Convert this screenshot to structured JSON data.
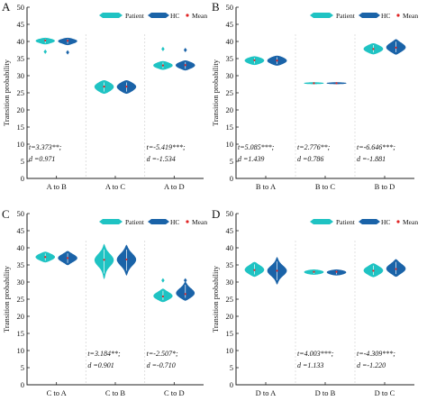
{
  "legend": {
    "patient": "Patient",
    "hc": "HC",
    "mean": "Mean"
  },
  "colors": {
    "patient": "#1fc3c3",
    "hc": "#1a63a8",
    "mean": "#e02424",
    "axis": "#222222",
    "divider": "#d9d9d9"
  },
  "chart_data": [
    {
      "panel": "A",
      "type": "violin",
      "ylabel": "Transition probability",
      "ylim": [
        0,
        50
      ],
      "yticks": [
        0,
        5,
        10,
        15,
        20,
        25,
        30,
        35,
        40,
        45,
        50
      ],
      "categories": [
        "A to B",
        "A to C",
        "A to D"
      ],
      "series": [
        {
          "name": "Patient",
          "median": [
            40.3,
            26.8,
            33.0
          ],
          "spread": [
            0.9,
            1.8,
            1.2
          ],
          "range": [
            [
              39.2,
              41.0
            ],
            [
              24.8,
              28.6
            ],
            [
              31.8,
              34.2
            ]
          ],
          "outliers": [
            [
              37.0
            ],
            [],
            [
              37.8
            ]
          ]
        },
        {
          "name": "HC",
          "median": [
            40.2,
            26.8,
            33.1
          ],
          "spread": [
            0.9,
            1.7,
            1.2
          ],
          "range": [
            [
              39.0,
              41.0
            ],
            [
              24.8,
              28.6
            ],
            [
              31.6,
              34.4
            ]
          ],
          "outliers": [
            [
              36.8
            ],
            [],
            [
              37.5
            ]
          ]
        }
      ],
      "stats": [
        {
          "t": "t=3.373**;",
          "d": "d =0.971"
        },
        null,
        {
          "t": "t=-5.419***;",
          "d": "d =-1.534"
        }
      ]
    },
    {
      "panel": "B",
      "type": "violin",
      "ylabel": "Transition probability",
      "ylim": [
        0,
        50
      ],
      "yticks": [
        0,
        5,
        10,
        15,
        20,
        25,
        30,
        35,
        40,
        45,
        50
      ],
      "categories": [
        "B to A",
        "B to C",
        "B to D"
      ],
      "series": [
        {
          "name": "Patient",
          "median": [
            34.5,
            27.8,
            37.8
          ],
          "spread": [
            1.4,
            0.9,
            1.4
          ],
          "range": [
            [
              33.2,
              35.6
            ],
            [
              27.6,
              28.0
            ],
            [
              36.3,
              39.4
            ]
          ],
          "outliers": [
            [],
            [],
            []
          ]
        },
        {
          "name": "HC",
          "median": [
            34.4,
            27.8,
            38.2
          ],
          "spread": [
            1.4,
            0.9,
            1.4
          ],
          "range": [
            [
              33.0,
              35.8
            ],
            [
              27.6,
              28.0
            ],
            [
              36.2,
              40.6
            ]
          ],
          "outliers": [
            [],
            [],
            []
          ]
        }
      ],
      "stats": [
        {
          "t": "t=5.085***;",
          "d": "d =1.439"
        },
        {
          "t": "t=2.776**;",
          "d": "d =0.786"
        },
        {
          "t": "t=-6.646***;",
          "d": "d =-1.881"
        }
      ]
    },
    {
      "panel": "C",
      "type": "violin",
      "ylabel": "Transition probability",
      "ylim": [
        0,
        50
      ],
      "yticks": [
        0,
        5,
        10,
        15,
        20,
        25,
        30,
        35,
        40,
        45,
        50
      ],
      "categories": [
        "C to A",
        "C to B",
        "C to D"
      ],
      "series": [
        {
          "name": "Patient",
          "median": [
            37.3,
            36.5,
            25.8
          ],
          "spread": [
            1.2,
            1.8,
            1.3
          ],
          "range": [
            [
              35.8,
              38.8
            ],
            [
              31.0,
              41.0
            ],
            [
              24.2,
              28.0
            ]
          ],
          "outliers": [
            [],
            [],
            [
              30.5
            ]
          ]
        },
        {
          "name": "HC",
          "median": [
            37.0,
            36.6,
            26.5
          ],
          "spread": [
            1.2,
            1.8,
            1.5
          ],
          "range": [
            [
              35.0,
              39.0
            ],
            [
              32.0,
              40.8
            ],
            [
              24.6,
              30.0
            ]
          ],
          "outliers": [
            [],
            [],
            [
              30.5
            ]
          ]
        }
      ],
      "stats": [
        null,
        {
          "t": "t=3.184**;",
          "d": "d =0.901"
        },
        {
          "t": "t=-2.507*;",
          "d": "d =-0.710"
        }
      ]
    },
    {
      "panel": "D",
      "type": "violin",
      "ylabel": "Transition probability",
      "ylim": [
        0,
        50
      ],
      "yticks": [
        0,
        5,
        10,
        15,
        20,
        25,
        30,
        35,
        40,
        45,
        50
      ],
      "categories": [
        "D to A",
        "D to B",
        "D to C"
      ],
      "series": [
        {
          "name": "Patient",
          "median": [
            33.5,
            33.0,
            33.3
          ],
          "spread": [
            1.5,
            1.3,
            1.5
          ],
          "range": [
            [
              31.6,
              35.8
            ],
            [
              32.2,
              33.6
            ],
            [
              31.5,
              35.4
            ]
          ],
          "outliers": [
            [],
            [],
            []
          ]
        },
        {
          "name": "HC",
          "median": [
            33.3,
            33.0,
            33.8
          ],
          "spread": [
            1.5,
            1.3,
            1.5
          ],
          "range": [
            [
              29.4,
              37.2
            ],
            [
              32.0,
              33.6
            ],
            [
              31.6,
              36.6
            ]
          ],
          "outliers": [
            [],
            [],
            []
          ]
        }
      ],
      "stats": [
        null,
        {
          "t": "t=4.003***;",
          "d": "d =1.133"
        },
        {
          "t": "t=-4.309***;",
          "d": "d =-1.220"
        }
      ]
    }
  ]
}
